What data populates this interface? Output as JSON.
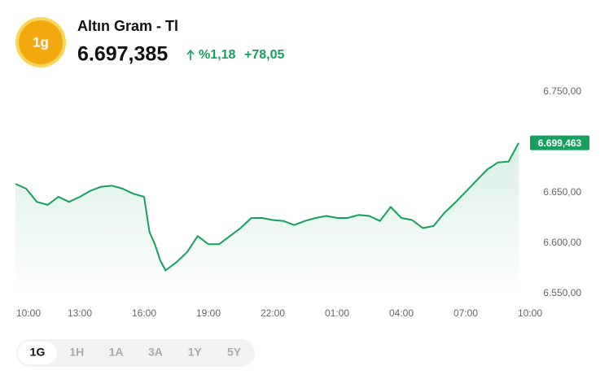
{
  "header": {
    "icon": "1g",
    "title": "Altın Gram - Tl",
    "price": "6.697,385",
    "change_pct": "%1,18",
    "change": "+78,05"
  },
  "chart_data": {
    "type": "line",
    "color": "#16a05d",
    "x": [
      0,
      0.5,
      1,
      1.5,
      2,
      2.5,
      3,
      3.5,
      4,
      4.5,
      5,
      5.5,
      6,
      6.25,
      6.5,
      6.75,
      7,
      7.5,
      8,
      8.5,
      9,
      9.5,
      10,
      10.5,
      11,
      11.5,
      12,
      12.5,
      13,
      13.5,
      14,
      14.5,
      15,
      15.5,
      16,
      16.5,
      17,
      17.5,
      18,
      18.5,
      19,
      19.5,
      20,
      20.5,
      21,
      21.5,
      22,
      22.5,
      23,
      23.47
    ],
    "values": [
      6658.8,
      6654,
      6641,
      6638,
      6646,
      6641,
      6646,
      6652,
      6656,
      6657,
      6654,
      6649,
      6646,
      6611,
      6599,
      6583,
      6573,
      6581,
      6591,
      6607,
      6599,
      6599,
      6607,
      6615,
      6625,
      6625,
      6623,
      6622,
      6618,
      6622,
      6625,
      6627,
      6625,
      6625,
      6628,
      6627,
      6622,
      6636,
      6625,
      6623,
      6615,
      6617,
      6630,
      6640,
      6651,
      6662,
      6673,
      6680,
      6681,
      6699.463
    ],
    "value_labels": [
      null,
      null,
      null,
      null,
      null,
      null,
      null,
      null,
      null,
      null,
      null,
      null,
      null,
      null,
      null,
      null,
      null,
      null,
      null,
      null,
      null,
      null,
      null,
      null,
      null,
      null,
      null,
      null,
      null,
      null,
      null,
      null,
      null,
      null,
      null,
      null,
      null,
      null,
      null,
      null,
      null,
      null,
      null,
      null,
      null,
      null,
      null,
      null,
      null,
      "6.699,463"
    ],
    "xlim": [
      0,
      24
    ],
    "xticks": [
      {
        "value": 0,
        "label": "10:00"
      },
      {
        "value": 3,
        "label": "13:00"
      },
      {
        "value": 6,
        "label": "16:00"
      },
      {
        "value": 9,
        "label": "19:00"
      },
      {
        "value": 12,
        "label": "22:00"
      },
      {
        "value": 15,
        "label": "01:00"
      },
      {
        "value": 18,
        "label": "04:00"
      },
      {
        "value": 21,
        "label": "07:00"
      },
      {
        "value": 24,
        "label": "10:00"
      }
    ],
    "ylim": [
      6550,
      6750
    ],
    "yticks": [
      {
        "value": 6550,
        "label": "6.550,00"
      },
      {
        "value": 6600,
        "label": "6.600,00"
      },
      {
        "value": 6650,
        "label": "6.650,00"
      },
      {
        "value": 6750,
        "label": "6.750,00"
      }
    ]
  },
  "tabs": {
    "items": [
      "1G",
      "1H",
      "1A",
      "3A",
      "1Y",
      "5Y"
    ],
    "active": 0
  }
}
